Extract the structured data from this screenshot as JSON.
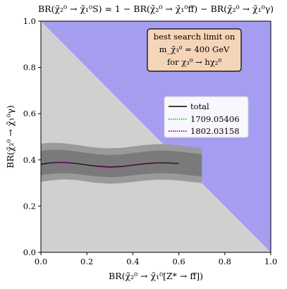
{
  "chart_data": {
    "type": "line",
    "title": "BR(χ̃₂⁰ → χ̃₁⁰S) = 1 − BR(χ̃₂⁰ → χ̃₁⁰ff̄) − BR(χ̃₂⁰ → χ̃₁⁰γ)",
    "xlabel": "BR(χ̃₂⁰ → χ̃₁⁰[Z* → ff̄])",
    "ylabel": "BR(χ̃₂⁰ → χ̃₁⁰γ)",
    "xlim": [
      0,
      1
    ],
    "ylim": [
      0,
      1
    ],
    "xticks": [
      "0.0",
      "0.2",
      "0.4",
      "0.6",
      "0.8",
      "1.0"
    ],
    "yticks": [
      "0.0",
      "0.2",
      "0.4",
      "0.6",
      "0.8",
      "1.0"
    ],
    "grid": false,
    "legend_position": "right",
    "annotation": {
      "lines": [
        "best search limit on",
        "m_χ̃₃⁰ = 400  GeV",
        "for χ₃⁰ → hχ₂⁰"
      ],
      "position": "top-right"
    },
    "series": [
      {
        "name": "total",
        "color": "#000000",
        "style": "solid",
        "x": [
          0.0,
          0.05,
          0.1,
          0.15,
          0.2,
          0.25,
          0.3,
          0.35,
          0.4,
          0.45,
          0.5,
          0.55,
          0.6
        ],
        "y": [
          0.381,
          0.388,
          0.389,
          0.385,
          0.378,
          0.372,
          0.369,
          0.371,
          0.377,
          0.383,
          0.387,
          0.387,
          0.384
        ]
      },
      {
        "name": "1709.05406",
        "color": "#00dd00",
        "style": "dotted",
        "x": [
          0.0,
          0.05,
          0.1,
          0.15,
          0.2,
          0.25,
          0.3,
          0.35,
          0.4,
          0.45,
          0.5,
          0.55,
          0.6
        ],
        "y": [
          0.381,
          0.388,
          0.389,
          0.385,
          0.378,
          0.372,
          0.369,
          0.371,
          0.377,
          0.383,
          0.387,
          0.387,
          0.384
        ]
      },
      {
        "name": "1802.03158",
        "color": "#8b008b",
        "style": "dotted",
        "x": [
          0.0,
          0.05,
          0.1,
          0.15,
          0.2,
          0.25,
          0.3,
          0.35,
          0.4,
          0.45,
          0.5,
          0.55,
          0.6
        ],
        "y": [
          0.381,
          0.388,
          0.389,
          0.385,
          0.378,
          0.372,
          0.369,
          0.371,
          0.377,
          0.383,
          0.387,
          0.387,
          0.384
        ]
      }
    ],
    "bands": [
      {
        "role": "outer-band",
        "color": "#9a9a9a",
        "x": [
          0.0,
          0.05,
          0.1,
          0.15,
          0.2,
          0.25,
          0.3,
          0.35,
          0.4,
          0.45,
          0.5,
          0.55,
          0.6,
          0.65,
          0.7
        ],
        "y_low": [
          0.305,
          0.312,
          0.316,
          0.313,
          0.306,
          0.3,
          0.297,
          0.299,
          0.304,
          0.31,
          0.314,
          0.314,
          0.311,
          0.305,
          0.3
        ],
        "y_high": [
          0.47,
          0.474,
          0.472,
          0.466,
          0.458,
          0.452,
          0.45,
          0.452,
          0.458,
          0.464,
          0.468,
          0.467,
          0.463,
          0.456,
          0.45
        ]
      },
      {
        "role": "inner-band",
        "color": "#7a7a7a",
        "x": [
          0.0,
          0.05,
          0.1,
          0.15,
          0.2,
          0.25,
          0.3,
          0.35,
          0.4,
          0.45,
          0.5,
          0.55,
          0.6,
          0.65,
          0.7
        ],
        "y_low": [
          0.334,
          0.34,
          0.343,
          0.34,
          0.333,
          0.328,
          0.325,
          0.327,
          0.333,
          0.338,
          0.342,
          0.342,
          0.339,
          0.333,
          0.328
        ],
        "y_high": [
          0.44,
          0.444,
          0.443,
          0.437,
          0.43,
          0.424,
          0.421,
          0.423,
          0.429,
          0.435,
          0.44,
          0.44,
          0.436,
          0.43,
          0.425
        ]
      }
    ],
    "regions": [
      {
        "role": "allowed-triangle",
        "color": "#d0d0d0"
      },
      {
        "role": "excluded-x-plus-y-above-1",
        "color": "#a59df0"
      }
    ]
  }
}
